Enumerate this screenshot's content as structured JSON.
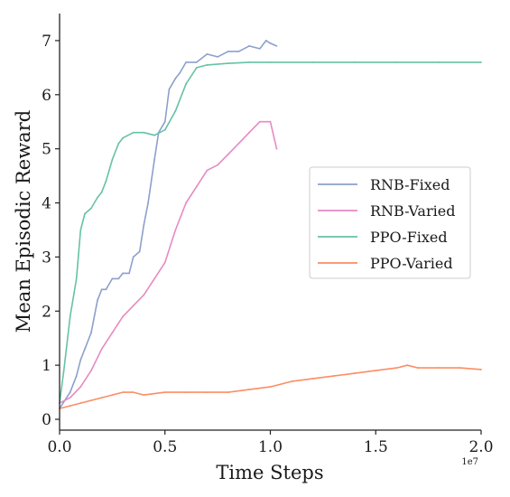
{
  "chart_data": {
    "type": "line",
    "xlabel": "Time Steps",
    "ylabel": "Mean Episodic Reward",
    "x_offset_label": "1e7",
    "xlim": [
      0.0,
      2.0
    ],
    "ylim": [
      -0.2,
      7.5
    ],
    "xticks": [
      "0.0",
      "0.5",
      "1.0",
      "1.5",
      "2.0"
    ],
    "yticks": [
      "0",
      "1",
      "2",
      "3",
      "4",
      "5",
      "6",
      "7"
    ],
    "grid": false,
    "legend_position": "center-right",
    "series": [
      {
        "name": "RNB-Fixed",
        "color": "#8da0cb",
        "x": [
          0.0,
          0.05,
          0.08,
          0.1,
          0.12,
          0.15,
          0.18,
          0.2,
          0.22,
          0.25,
          0.28,
          0.3,
          0.33,
          0.35,
          0.38,
          0.4,
          0.42,
          0.45,
          0.47,
          0.5,
          0.52,
          0.55,
          0.57,
          0.6,
          0.65,
          0.7,
          0.75,
          0.8,
          0.85,
          0.9,
          0.95,
          0.98,
          1.0,
          1.03
        ],
        "y": [
          0.2,
          0.5,
          0.8,
          1.1,
          1.3,
          1.6,
          2.2,
          2.4,
          2.4,
          2.6,
          2.6,
          2.7,
          2.7,
          3.0,
          3.1,
          3.6,
          4.0,
          4.8,
          5.3,
          5.5,
          6.1,
          6.3,
          6.4,
          6.6,
          6.6,
          6.75,
          6.7,
          6.8,
          6.8,
          6.9,
          6.85,
          7.0,
          6.95,
          6.9
        ]
      },
      {
        "name": "RNB-Varied",
        "color": "#e78ac3",
        "x": [
          0.0,
          0.05,
          0.1,
          0.15,
          0.2,
          0.25,
          0.3,
          0.35,
          0.4,
          0.45,
          0.5,
          0.55,
          0.6,
          0.65,
          0.7,
          0.75,
          0.8,
          0.85,
          0.9,
          0.95,
          1.0,
          1.03
        ],
        "y": [
          0.3,
          0.4,
          0.6,
          0.9,
          1.3,
          1.6,
          1.9,
          2.1,
          2.3,
          2.6,
          2.9,
          3.5,
          4.0,
          4.3,
          4.6,
          4.7,
          4.9,
          5.1,
          5.3,
          5.5,
          5.5,
          5.0
        ]
      },
      {
        "name": "PPO-Fixed",
        "color": "#66c2a5",
        "x": [
          0.0,
          0.02,
          0.05,
          0.08,
          0.1,
          0.12,
          0.15,
          0.18,
          0.2,
          0.22,
          0.25,
          0.28,
          0.3,
          0.35,
          0.4,
          0.45,
          0.5,
          0.55,
          0.6,
          0.65,
          0.7,
          0.8,
          0.9,
          1.0,
          1.2,
          1.4,
          1.6,
          1.8,
          2.0
        ],
        "y": [
          0.3,
          0.9,
          1.9,
          2.6,
          3.5,
          3.8,
          3.9,
          4.1,
          4.2,
          4.4,
          4.8,
          5.1,
          5.2,
          5.3,
          5.3,
          5.25,
          5.35,
          5.7,
          6.2,
          6.5,
          6.55,
          6.58,
          6.6,
          6.6,
          6.6,
          6.6,
          6.6,
          6.6,
          6.6
        ]
      },
      {
        "name": "PPO-Varied",
        "color": "#fc8d62",
        "x": [
          0.0,
          0.05,
          0.1,
          0.15,
          0.2,
          0.25,
          0.3,
          0.35,
          0.4,
          0.5,
          0.6,
          0.7,
          0.8,
          0.9,
          1.0,
          1.1,
          1.2,
          1.3,
          1.4,
          1.5,
          1.6,
          1.65,
          1.7,
          1.8,
          1.9,
          2.0
        ],
        "y": [
          0.2,
          0.25,
          0.3,
          0.35,
          0.4,
          0.45,
          0.5,
          0.5,
          0.45,
          0.5,
          0.5,
          0.5,
          0.5,
          0.55,
          0.6,
          0.7,
          0.75,
          0.8,
          0.85,
          0.9,
          0.95,
          1.0,
          0.95,
          0.95,
          0.95,
          0.92
        ]
      }
    ]
  }
}
